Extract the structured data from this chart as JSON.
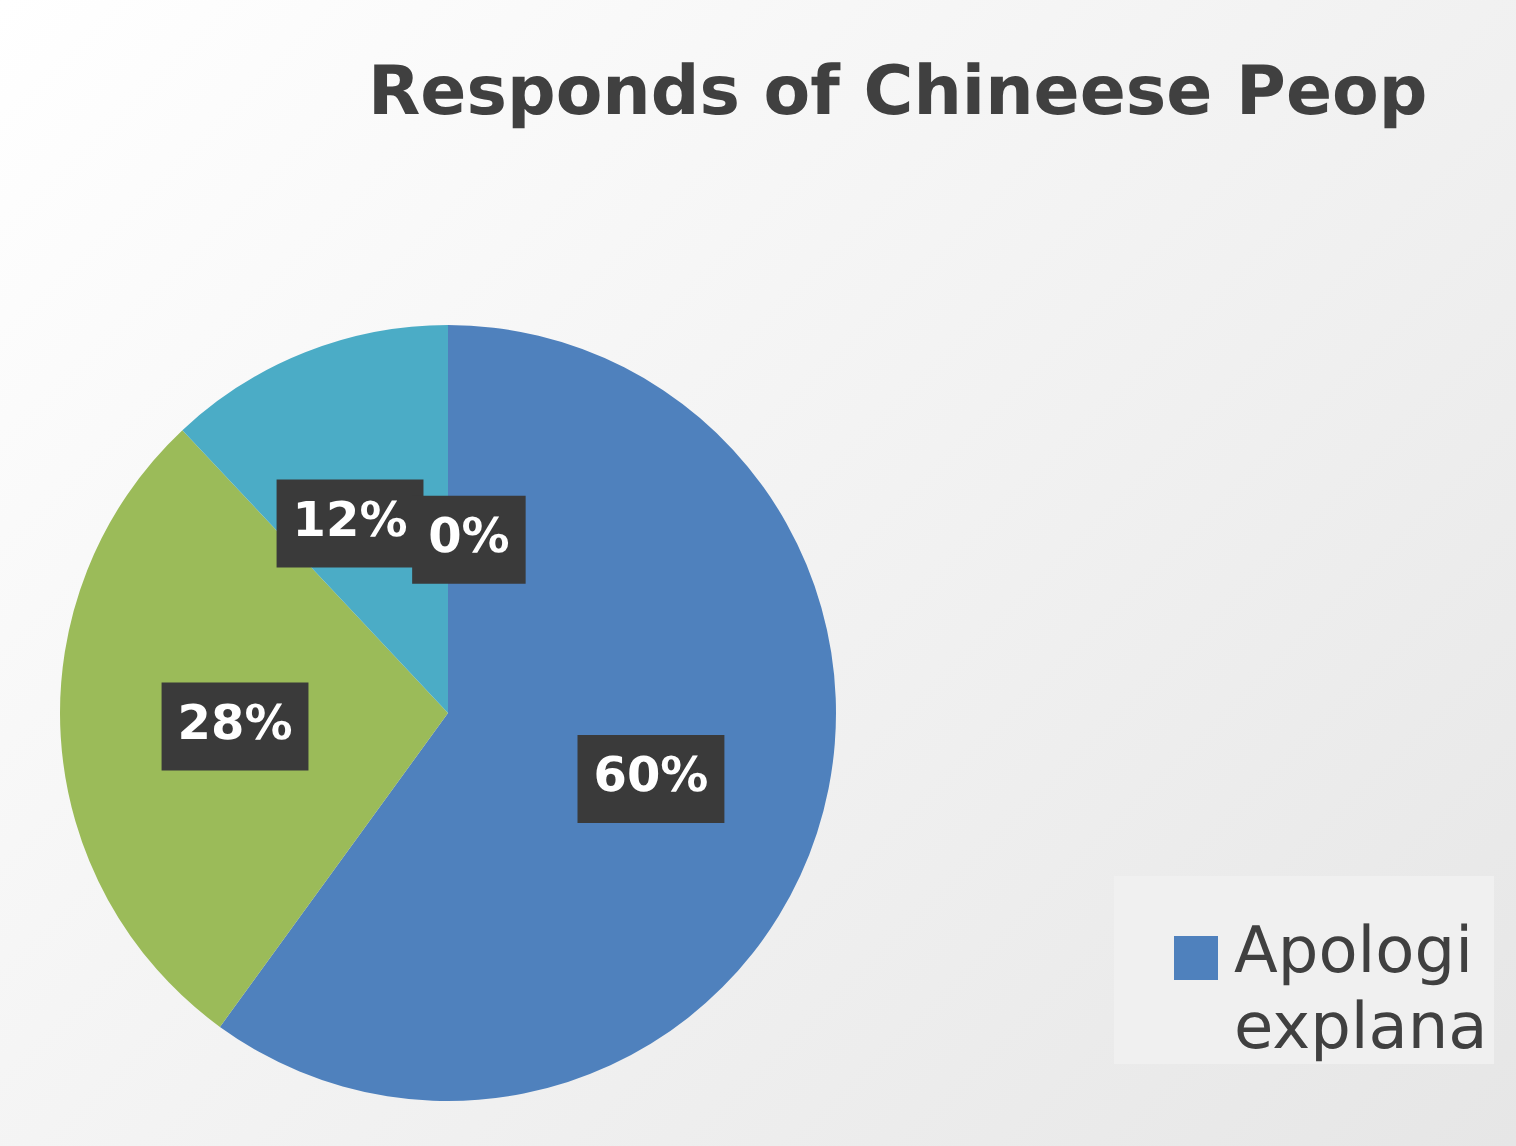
{
  "chart_data": {
    "type": "pie",
    "title": "Responds of Chineese Peop",
    "categories": [
      "Apologi explana",
      null,
      null,
      null
    ],
    "values": [
      60,
      28,
      12,
      0
    ],
    "colors": [
      "#4f81bd",
      "#9bbb59",
      "#4bacc6",
      "#f79646"
    ],
    "value_labels": [
      "60%",
      "28%",
      "12%",
      "0%"
    ],
    "legend": "bottom right"
  }
}
